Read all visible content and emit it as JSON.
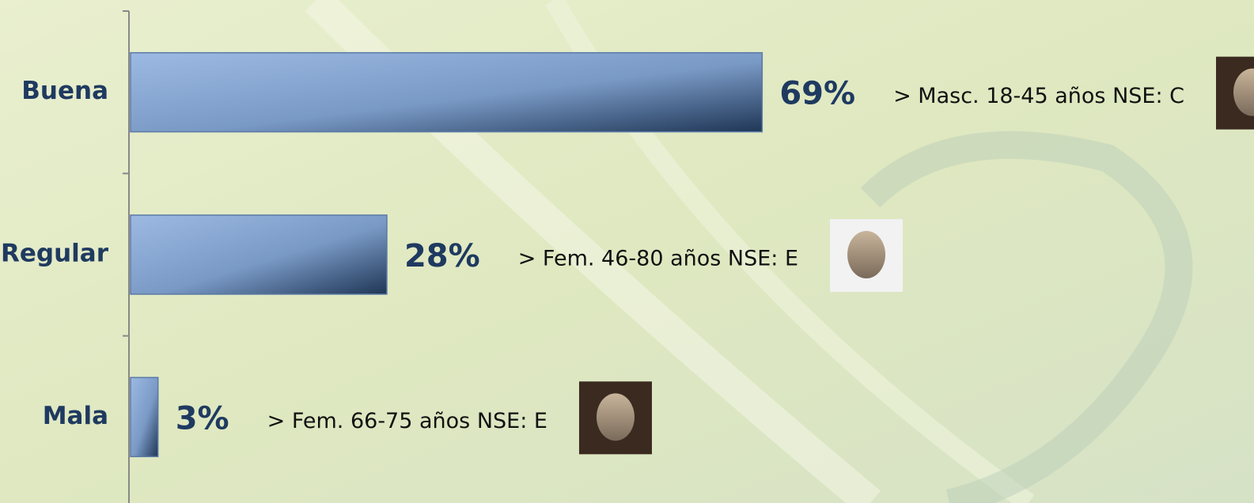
{
  "chart_data": {
    "type": "bar",
    "orientation": "horizontal",
    "categories": [
      "Buena",
      "Regular",
      "Mala"
    ],
    "values": [
      69,
      28,
      3
    ],
    "value_labels": [
      "69%",
      "28%",
      "3%"
    ],
    "annotations": [
      "> Masc. 18-45 años NSE: C",
      "> Fem. 46-80 años NSE: E",
      "> Fem. 66-75 años NSE: E"
    ],
    "color": "#6f8fbb",
    "xlim": [
      0,
      100
    ]
  }
}
